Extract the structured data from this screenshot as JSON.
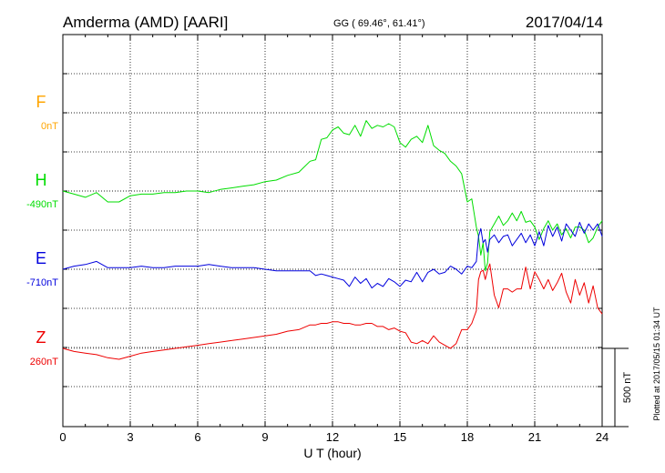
{
  "header": {
    "station": "Amderma (AMD)  [AARI]",
    "coords": "GG ( 69.46°,  61.41°)",
    "date": "2017/04/14"
  },
  "footer": {
    "plotted": "Plotted at 2017/05/15 01:34 UT",
    "scale_label": "500 nT"
  },
  "colors": {
    "F": "#ffa500",
    "H": "#00dd00",
    "E": "#0000dd",
    "Z": "#ee0000",
    "axis": "#000000",
    "grid": "#000000"
  },
  "chart_data": {
    "type": "line",
    "title": "Amderma (AMD)  [AARI]",
    "xlabel": "U T (hour)",
    "ylabel": "",
    "xlim": [
      0,
      24
    ],
    "xticks": [
      "0",
      "3",
      "6",
      "9",
      "12",
      "15",
      "18",
      "21",
      "24"
    ],
    "grid": true,
    "scale_bar_nT": 500,
    "series": [
      {
        "name": "F",
        "baseline_label": "0nT",
        "color": "#ffa500",
        "x": [],
        "values": []
      },
      {
        "name": "H",
        "baseline_label": "-490nT",
        "color": "#00dd00",
        "x": [
          0,
          0.5,
          1,
          1.5,
          2,
          2.5,
          3,
          3.5,
          4,
          4.5,
          5,
          5.5,
          6,
          6.5,
          7,
          7.5,
          8,
          8.5,
          9,
          9.5,
          10,
          10.5,
          11,
          11.25,
          11.5,
          11.75,
          12,
          12.25,
          12.5,
          12.75,
          13,
          13.25,
          13.5,
          13.75,
          14,
          14.25,
          14.5,
          14.75,
          15,
          15.25,
          15.5,
          15.75,
          16,
          16.25,
          16.5,
          16.75,
          17,
          17.25,
          17.5,
          17.75,
          18,
          18.2,
          18.4,
          18.5,
          18.6,
          18.7,
          18.8,
          18.9,
          19,
          19.2,
          19.4,
          19.6,
          19.8,
          20,
          20.2,
          20.4,
          20.6,
          20.8,
          21,
          21.2,
          21.4,
          21.6,
          21.8,
          22,
          22.2,
          22.4,
          22.6,
          22.8,
          23,
          23.2,
          23.4,
          23.6,
          23.8,
          24
        ],
        "values": [
          -490,
          -510,
          -530,
          -500,
          -560,
          -560,
          -520,
          -510,
          -510,
          -500,
          -500,
          -490,
          -490,
          -500,
          -480,
          -470,
          -460,
          -450,
          -430,
          -420,
          -390,
          -370,
          -300,
          -290,
          -160,
          -150,
          -100,
          -80,
          -120,
          -130,
          -70,
          -140,
          -40,
          -90,
          -70,
          -80,
          -60,
          -80,
          -180,
          -210,
          -160,
          -140,
          -180,
          -70,
          -200,
          -230,
          -250,
          -300,
          -330,
          -380,
          -560,
          -540,
          -720,
          -780,
          -900,
          -820,
          -1000,
          -950,
          -750,
          -700,
          -650,
          -710,
          -680,
          -630,
          -680,
          -620,
          -690,
          -680,
          -720,
          -800,
          -730,
          -680,
          -740,
          -700,
          -770,
          -730,
          -790,
          -720,
          -720,
          -740,
          -820,
          -790,
          -720,
          -680
        ]
      },
      {
        "name": "E",
        "baseline_label": "-710nT",
        "color": "#0000dd",
        "x": [
          0,
          0.5,
          1,
          1.5,
          2,
          2.5,
          3,
          3.5,
          4,
          4.5,
          5,
          5.5,
          6,
          6.5,
          7,
          7.5,
          8,
          8.5,
          9,
          9.5,
          10,
          10.5,
          11,
          11.25,
          11.5,
          11.75,
          12,
          12.25,
          12.5,
          12.75,
          13,
          13.25,
          13.5,
          13.75,
          14,
          14.25,
          14.5,
          14.75,
          15,
          15.25,
          15.5,
          15.75,
          16,
          16.25,
          16.5,
          16.75,
          17,
          17.25,
          17.5,
          17.75,
          18,
          18.2,
          18.4,
          18.5,
          18.6,
          18.7,
          18.8,
          18.9,
          19,
          19.2,
          19.4,
          19.6,
          19.8,
          20,
          20.2,
          20.4,
          20.6,
          20.8,
          21,
          21.2,
          21.4,
          21.6,
          21.8,
          22,
          22.2,
          22.4,
          22.6,
          22.8,
          23,
          23.2,
          23.4,
          23.6,
          23.8,
          24
        ],
        "values": [
          -710,
          -690,
          -680,
          -660,
          -700,
          -700,
          -700,
          -690,
          -700,
          -700,
          -690,
          -690,
          -690,
          -680,
          -690,
          -700,
          -700,
          -700,
          -710,
          -720,
          -720,
          -720,
          -720,
          -750,
          -740,
          -750,
          -760,
          -770,
          -780,
          -820,
          -760,
          -800,
          -770,
          -830,
          -800,
          -820,
          -770,
          -790,
          -820,
          -780,
          -790,
          -730,
          -790,
          -730,
          -710,
          -740,
          -730,
          -690,
          -710,
          -740,
          -690,
          -700,
          -660,
          -500,
          -450,
          -540,
          -520,
          -600,
          -520,
          -490,
          -540,
          -500,
          -490,
          -560,
          -520,
          -480,
          -540,
          -490,
          -560,
          -470,
          -560,
          -430,
          -500,
          -440,
          -530,
          -420,
          -460,
          -500,
          -410,
          -480,
          -420,
          -460,
          -420,
          -500
        ]
      },
      {
        "name": "Z",
        "baseline_label": "260nT",
        "color": "#ee0000",
        "x": [
          0,
          0.5,
          1,
          1.5,
          2,
          2.5,
          3,
          3.5,
          4,
          4.5,
          5,
          5.5,
          6,
          6.5,
          7,
          7.5,
          8,
          8.5,
          9,
          9.5,
          10,
          10.5,
          11,
          11.25,
          11.5,
          11.75,
          12,
          12.25,
          12.5,
          12.75,
          13,
          13.25,
          13.5,
          13.75,
          14,
          14.25,
          14.5,
          14.75,
          15,
          15.25,
          15.5,
          15.75,
          16,
          16.25,
          16.5,
          16.75,
          17,
          17.25,
          17.5,
          17.75,
          18,
          18.2,
          18.4,
          18.5,
          18.6,
          18.7,
          18.8,
          18.9,
          19,
          19.2,
          19.4,
          19.6,
          19.8,
          20,
          20.2,
          20.4,
          20.6,
          20.8,
          21,
          21.2,
          21.4,
          21.6,
          21.8,
          22,
          22.2,
          22.4,
          22.6,
          22.8,
          23,
          23.2,
          23.4,
          23.6,
          23.8,
          24
        ],
        "values": [
          260,
          240,
          230,
          220,
          200,
          190,
          210,
          230,
          240,
          250,
          260,
          270,
          280,
          290,
          300,
          310,
          320,
          330,
          340,
          350,
          370,
          380,
          410,
          410,
          420,
          420,
          430,
          430,
          420,
          420,
          410,
          410,
          420,
          420,
          400,
          400,
          380,
          390,
          370,
          360,
          300,
          290,
          310,
          290,
          340,
          300,
          280,
          260,
          290,
          380,
          380,
          420,
          500,
          700,
          750,
          760,
          700,
          760,
          800,
          600,
          520,
          640,
          640,
          620,
          640,
          640,
          780,
          640,
          750,
          700,
          640,
          700,
          630,
          680,
          740,
          620,
          550,
          700,
          600,
          680,
          550,
          660,
          520,
          480
        ]
      }
    ]
  }
}
